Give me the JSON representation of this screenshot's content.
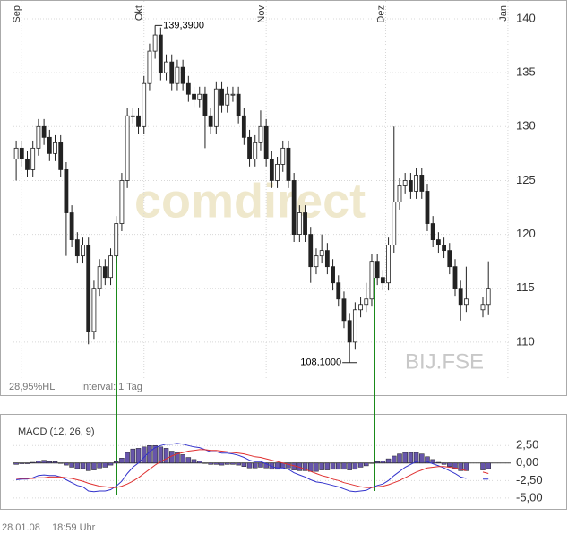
{
  "chart_data": [
    {
      "type": "candlestick",
      "info": "28,95%HL",
      "interval": "Interval: 1 Tag",
      "symbol": "BIJ.FSE",
      "watermark": "comdirect",
      "xlim": [
        -0.5,
        89
      ],
      "xticks": [
        {
          "value": 1,
          "label": "Sep"
        },
        {
          "value": 23,
          "label": "Okt"
        },
        {
          "value": 45,
          "label": "Nov"
        },
        {
          "value": 66.5,
          "label": "Dez"
        },
        {
          "value": 88.5,
          "label": "Jan"
        }
      ],
      "ylim": [
        105,
        141
      ],
      "yticks": [
        110,
        115,
        120,
        125,
        130,
        135,
        140
      ],
      "grid": true,
      "up_color": "#ffffff",
      "down_color": "#222222",
      "open": [
        127,
        128,
        127,
        126,
        128,
        130,
        129,
        127.5,
        128.5,
        126,
        122,
        119.5,
        118,
        119,
        111,
        115,
        117,
        116,
        118,
        121,
        125,
        131,
        131,
        130,
        134,
        137,
        138.5,
        135,
        136,
        134,
        135.5,
        134,
        133,
        132.5,
        133,
        131,
        130,
        133.5,
        132,
        133,
        133,
        131,
        129,
        127,
        128.5,
        130,
        127,
        125,
        126.5,
        128,
        125,
        120,
        122,
        120,
        117,
        118,
        118.5,
        117,
        115.5,
        114,
        112,
        110,
        113,
        113.5,
        114,
        117.5,
        116,
        115.5,
        119,
        123,
        124.5,
        125,
        124,
        125.5,
        124,
        121,
        119.5,
        119,
        118.5,
        117,
        115,
        113.5,
        null,
        null,
        113,
        113.5
      ],
      "high": [
        128.7,
        128.7,
        127.7,
        128.7,
        130.7,
        130.7,
        129.7,
        129.2,
        129.2,
        126.7,
        122.7,
        120.2,
        119.7,
        119.7,
        115.7,
        117.7,
        117.7,
        118.7,
        121.7,
        125.7,
        131.7,
        131.7,
        131.7,
        134.7,
        137.7,
        139.39,
        139.2,
        136.7,
        136.7,
        136.2,
        136.2,
        134.7,
        133.7,
        133.7,
        133.7,
        131.7,
        134.2,
        134.2,
        133.7,
        133.7,
        133.7,
        131.7,
        129.7,
        129.2,
        131.5,
        130.7,
        127.7,
        127.2,
        128.7,
        128.7,
        125.7,
        122.7,
        122.7,
        120.7,
        118.7,
        120,
        119.2,
        117.7,
        116.2,
        114.7,
        112.7,
        113.7,
        114.2,
        115.5,
        118.2,
        118.2,
        116.7,
        119.7,
        130,
        125.2,
        125.7,
        125.7,
        126.2,
        126.2,
        124.7,
        121.7,
        120.2,
        119.7,
        119.2,
        117.7,
        115.7,
        117,
        null,
        null,
        114.2,
        117.5
      ],
      "low": [
        125,
        126.3,
        125.3,
        125.3,
        127.3,
        128.3,
        126.8,
        126.8,
        125.3,
        118,
        118.8,
        117.3,
        117.3,
        109.8,
        110.3,
        114.3,
        115.3,
        115.3,
        117.3,
        120.3,
        124.3,
        130.3,
        129.3,
        129.3,
        133.3,
        136.3,
        134.3,
        134.3,
        133.3,
        133.3,
        133.3,
        132.3,
        131.8,
        131.8,
        128,
        129.3,
        129.3,
        131.3,
        131.3,
        132.3,
        130.3,
        128.3,
        126.3,
        126.3,
        127.8,
        126.3,
        124.3,
        124.3,
        125.8,
        124.3,
        119.3,
        119.3,
        119.3,
        115.5,
        116.3,
        117.3,
        116.3,
        114.8,
        113.3,
        111.3,
        108.1,
        109.3,
        112.3,
        112.8,
        113.3,
        115.3,
        114.8,
        114.8,
        118.3,
        122.3,
        123.8,
        123.3,
        123.3,
        123.3,
        120.3,
        118.8,
        118.3,
        117.8,
        116.3,
        114.3,
        112,
        112.8,
        null,
        null,
        112.3,
        112.5
      ],
      "close": [
        128,
        127,
        126,
        128,
        130,
        129,
        127.5,
        128.5,
        126,
        122,
        119.5,
        118,
        119,
        111,
        115,
        117,
        116,
        118,
        121,
        125,
        131,
        131,
        130,
        134,
        137,
        138.5,
        135,
        136,
        134,
        135.5,
        134,
        133,
        132.5,
        133,
        131,
        130,
        133.5,
        132,
        133,
        133,
        131,
        129,
        127,
        128.5,
        130,
        127,
        125,
        126.5,
        128,
        125,
        120,
        122,
        120,
        117,
        118,
        118.5,
        117,
        115.5,
        114,
        112,
        110,
        113,
        113.5,
        114,
        117.5,
        116,
        115.5,
        119,
        123,
        124.5,
        125,
        124,
        125.5,
        124,
        121,
        119.5,
        119,
        118.5,
        117,
        115,
        113.5,
        114,
        null,
        null,
        113.5,
        115
      ],
      "annotations": [
        {
          "label": "139,3900",
          "value": 139.39
        },
        {
          "label": "108,1000",
          "value": 108.1
        }
      ]
    },
    {
      "type": "macd",
      "title": "MACD (12, 26, 9)",
      "xlim": [
        -0.5,
        89
      ],
      "ylim": [
        -6.3,
        6.5
      ],
      "yticks": [
        {
          "value": 2.5,
          "label": "2,50"
        },
        {
          "value": 0,
          "label": "0,00"
        },
        {
          "value": -2.5,
          "label": "-2,50"
        },
        {
          "value": -5,
          "label": "-5,00"
        }
      ],
      "series": [
        {
          "type": "bar",
          "color": "#6655aa",
          "values": [
            -0.2,
            -0.1,
            -0.1,
            0.1,
            0.3,
            0.4,
            0.2,
            0.2,
            0.0,
            -0.3,
            -0.6,
            -0.8,
            -0.8,
            -1.1,
            -1.0,
            -0.7,
            -0.6,
            -0.3,
            0.2,
            0.7,
            1.5,
            2.0,
            2.1,
            2.3,
            2.5,
            2.5,
            2.3,
            2.1,
            1.7,
            1.5,
            1.2,
            0.8,
            0.5,
            0.3,
            0.0,
            -0.2,
            -0.2,
            -0.3,
            -0.2,
            -0.2,
            -0.3,
            -0.5,
            -0.7,
            -0.7,
            -0.6,
            -0.7,
            -0.9,
            -0.9,
            -0.7,
            -0.7,
            -1.0,
            -1.1,
            -1.1,
            -1.2,
            -1.2,
            -1.0,
            -1.0,
            -0.9,
            -0.9,
            -0.9,
            -1.0,
            -0.9,
            -0.6,
            -0.4,
            0.0,
            0.2,
            0.3,
            0.6,
            1.0,
            1.3,
            1.5,
            1.5,
            1.5,
            1.3,
            0.9,
            0.5,
            0.1,
            -0.2,
            -0.5,
            -0.8,
            -1.1,
            -1.1,
            null,
            null,
            -1.0,
            -0.8
          ]
        },
        {
          "type": "line",
          "color": "#3333cc",
          "values": [
            -2.4,
            -2.3,
            -2.3,
            -2.1,
            -1.8,
            -1.7,
            -1.8,
            -1.8,
            -2.0,
            -2.4,
            -2.8,
            -3.2,
            -3.4,
            -4.0,
            -4.1,
            -4.0,
            -4.0,
            -3.8,
            -3.3,
            -2.6,
            -1.5,
            -0.6,
            0.0,
            0.8,
            1.6,
            2.2,
            2.5,
            2.7,
            2.7,
            2.8,
            2.7,
            2.5,
            2.3,
            2.2,
            1.9,
            1.6,
            1.6,
            1.4,
            1.4,
            1.3,
            1.1,
            0.8,
            0.4,
            0.2,
            0.2,
            -0.1,
            -0.5,
            -0.7,
            -0.7,
            -0.9,
            -1.4,
            -1.7,
            -2.0,
            -2.4,
            -2.7,
            -2.8,
            -3.0,
            -3.2,
            -3.4,
            -3.7,
            -4.0,
            -4.1,
            -4.0,
            -3.9,
            -3.5,
            -3.2,
            -3.0,
            -2.5,
            -1.8,
            -1.2,
            -0.6,
            -0.2,
            0.2,
            0.3,
            0.2,
            -0.1,
            -0.4,
            -0.7,
            -1.1,
            -1.5,
            -2.0,
            -2.2,
            null,
            null,
            -2.3,
            -2.3
          ]
        },
        {
          "type": "line",
          "color": "#e03030",
          "values": [
            -2.2,
            -2.2,
            -2.2,
            -2.2,
            -2.1,
            -2.1,
            -2.0,
            -2.0,
            -2.0,
            -2.1,
            -2.2,
            -2.4,
            -2.6,
            -2.9,
            -3.1,
            -3.3,
            -3.4,
            -3.5,
            -3.5,
            -3.3,
            -3.0,
            -2.6,
            -2.1,
            -1.5,
            -0.9,
            -0.3,
            0.2,
            0.6,
            1.0,
            1.3,
            1.5,
            1.7,
            1.8,
            1.9,
            1.9,
            1.8,
            1.8,
            1.7,
            1.6,
            1.5,
            1.4,
            1.3,
            1.1,
            0.9,
            0.8,
            0.6,
            0.4,
            0.2,
            0.0,
            -0.2,
            -0.4,
            -0.6,
            -0.9,
            -1.2,
            -1.5,
            -1.8,
            -2.0,
            -2.3,
            -2.5,
            -2.8,
            -3.0,
            -3.2,
            -3.4,
            -3.5,
            -3.5,
            -3.4,
            -3.3,
            -3.1,
            -2.8,
            -2.5,
            -2.1,
            -1.7,
            -1.3,
            -1.0,
            -0.7,
            -0.6,
            -0.5,
            -0.5,
            -0.6,
            -0.7,
            -0.9,
            -1.1,
            null,
            null,
            -1.3,
            -1.5
          ]
        }
      ]
    }
  ],
  "footer": {
    "date": "28.01.08",
    "time": "18:59 Uhr"
  }
}
